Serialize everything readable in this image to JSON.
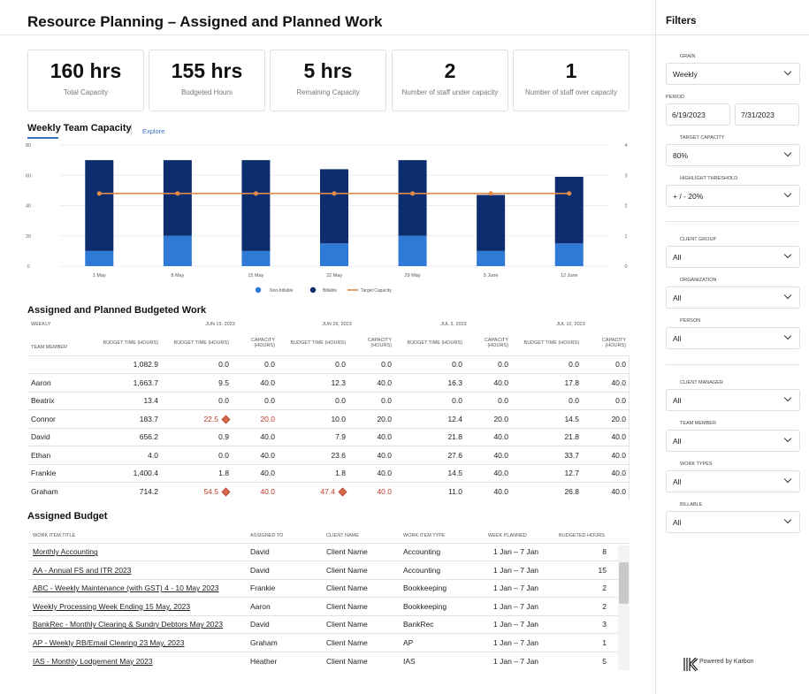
{
  "title": "Resource Planning – Assigned and Planned Work",
  "kpis": [
    {
      "value": "160 hrs",
      "label": "Total Capacity"
    },
    {
      "value": "155 hrs",
      "label": "Budgeted Hours"
    },
    {
      "value": "5 hrs",
      "label": "Remaining Capacity"
    },
    {
      "value": "2",
      "label": "Number of staff under capacity"
    },
    {
      "value": "1",
      "label": "Number of staff over capacity"
    }
  ],
  "chart_section": {
    "title": "Weekly Team Capacity",
    "explore": "Explore"
  },
  "chart_data": {
    "type": "bar",
    "categories": [
      "1 May",
      "8 May",
      "15 May",
      "22 May",
      "29 May",
      "5 June",
      "12 June"
    ],
    "series": [
      {
        "name": "Non-billable",
        "values": [
          10,
          20,
          10,
          15,
          20,
          10,
          15
        ],
        "color": "#2f7ad6"
      },
      {
        "name": "Billable",
        "values": [
          60,
          50,
          60,
          49,
          50,
          37,
          44
        ],
        "color": "#0d2e6e"
      },
      {
        "name": "Target Capacity",
        "values": [
          2.4,
          2.4,
          2.4,
          2.4,
          2.4,
          2.4,
          2.4
        ],
        "color": "#e0894a",
        "axis": "right"
      }
    ],
    "ylim": [
      0,
      80
    ],
    "y2lim": [
      0,
      4
    ],
    "yticks": [
      "0",
      "20",
      "40",
      "60",
      "80"
    ],
    "y2ticks": [
      "0",
      "1",
      "2",
      "3",
      "4"
    ],
    "legend": "bottom",
    "grid": true
  },
  "budgeted": {
    "title": "Assigned and Planned Budgeted Work",
    "grain": "WEEKLY",
    "member_header": "TEAM MEMBER",
    "budget_header": "BUDGET TIME (HOURS)",
    "weeks": [
      "JUN 19, 2023",
      "JUN 26, 2023",
      "JUL 3, 2023",
      "JUL 10, 2023"
    ],
    "sub_budget": "BUDGET TIME (HOURS)",
    "sub_capacity": "CAPACITY (HOURS)",
    "rows": [
      {
        "name": "",
        "budget": "1,082.9",
        "cells": [
          [
            "0.0",
            "0.0"
          ],
          [
            "0.0",
            "0.0"
          ],
          [
            "0.0",
            "0.0"
          ],
          [
            "0.0",
            "0.0"
          ]
        ],
        "flags": [
          false,
          false,
          false,
          false
        ]
      },
      {
        "name": "Aaron",
        "budget": "1,663.7",
        "cells": [
          [
            "9.5",
            "40.0"
          ],
          [
            "12.3",
            "40.0"
          ],
          [
            "16.3",
            "40.0"
          ],
          [
            "17.8",
            "40.0"
          ]
        ],
        "flags": [
          false,
          false,
          false,
          false
        ]
      },
      {
        "name": "Beatrix",
        "budget": "13.4",
        "cells": [
          [
            "0.0",
            "0.0"
          ],
          [
            "0.0",
            "0.0"
          ],
          [
            "0.0",
            "0.0"
          ],
          [
            "0.0",
            "0.0"
          ]
        ],
        "flags": [
          false,
          false,
          false,
          false
        ]
      },
      {
        "name": "Connor",
        "budget": "183.7",
        "cells": [
          [
            "22.5",
            "20.0"
          ],
          [
            "10.0",
            "20.0"
          ],
          [
            "12.4",
            "20.0"
          ],
          [
            "14.5",
            "20.0"
          ]
        ],
        "flags": [
          true,
          false,
          false,
          false
        ]
      },
      {
        "name": "David",
        "budget": "656.2",
        "cells": [
          [
            "0.9",
            "40.0"
          ],
          [
            "7.9",
            "40.0"
          ],
          [
            "21.8",
            "40.0"
          ],
          [
            "21.8",
            "40.0"
          ]
        ],
        "flags": [
          false,
          false,
          false,
          false
        ]
      },
      {
        "name": "Ethan",
        "budget": "4.0",
        "cells": [
          [
            "0.0",
            "40.0"
          ],
          [
            "23.6",
            "40.0"
          ],
          [
            "27.6",
            "40.0"
          ],
          [
            "33.7",
            "40.0"
          ]
        ],
        "flags": [
          false,
          false,
          false,
          false
        ]
      },
      {
        "name": "Frankie",
        "budget": "1,400.4",
        "cells": [
          [
            "1.8",
            "40.0"
          ],
          [
            "1.8",
            "40.0"
          ],
          [
            "14.5",
            "40.0"
          ],
          [
            "12.7",
            "40.0"
          ]
        ],
        "flags": [
          false,
          false,
          false,
          false
        ]
      },
      {
        "name": "Graham",
        "budget": "714.2",
        "cells": [
          [
            "54.5",
            "40.0"
          ],
          [
            "47.4",
            "40.0"
          ],
          [
            "11.0",
            "40.0"
          ],
          [
            "26.8",
            "40.0"
          ]
        ],
        "flags": [
          true,
          true,
          false,
          false
        ]
      }
    ]
  },
  "assigned": {
    "title": "Assigned Budget",
    "headers": [
      "WORK ITEM TITLE",
      "ASSIGNED TO",
      "CLIENT NAME",
      "WORK ITEM TYPE",
      "WEEK PLANNED",
      "BUDGETED HOURS"
    ],
    "rows": [
      [
        "Monthly Accounting",
        "David",
        "Client Name",
        "Accounting",
        "1 Jan – 7 Jan",
        "8"
      ],
      [
        "AA - Annual FS and ITR 2023",
        "David",
        "Client Name",
        "Accounting",
        "1 Jan – 7 Jan",
        "15"
      ],
      [
        "ABC - Weekly Maintenance (with GST) 4 - 10 May 2023",
        "Frankie",
        "Client Name",
        "Bookkeeping",
        "1 Jan – 7 Jan",
        "2"
      ],
      [
        "Weekly Processing Week Ending 15 May, 2023",
        "Aaron",
        "Client Name",
        "Bookkeeping",
        "1 Jan – 7 Jan",
        "2"
      ],
      [
        "BankRec - Monthly Clearing & Sundry Debtors  May 2023",
        "David",
        "Client Name",
        "BankRec",
        "1 Jan – 7 Jan",
        "3"
      ],
      [
        "AP - Weekly RB/Email Clearing 23 May, 2023",
        "Graham",
        "Client Name",
        "AP",
        "1 Jan – 7 Jan",
        "1"
      ],
      [
        "IAS - Monthly Lodgement May 2023",
        "Heather",
        "Client Name",
        "IAS",
        "1 Jan – 7 Jan",
        "5"
      ]
    ]
  },
  "filters": {
    "title": "Filters",
    "grain_label": "GRAIN",
    "grain": "Weekly",
    "period_label": "PERIOD",
    "start": "6/19/2023",
    "end": "7/31/2023",
    "target_label": "TARGET CAPACITY",
    "target": "80%",
    "threshold_label": "HIGHLIGHT THRESHOLD",
    "threshold": "+ / - 20%",
    "client_group_label": "CLIENT GROUP",
    "client_group": "All",
    "organization_label": "ORGANIZATION",
    "organization": "All",
    "person_label": "PERSON",
    "person": "All",
    "client_manager_label": "CLIENT MANAGER",
    "client_manager": "All",
    "team_member_label": "TEAM MEMBER",
    "team_member": "All",
    "work_types_label": "WORK TYPES",
    "work_types": "All",
    "billable_label": "BILLABLE",
    "billable": "All"
  },
  "footer": {
    "powered": "Powered by Karbon"
  }
}
